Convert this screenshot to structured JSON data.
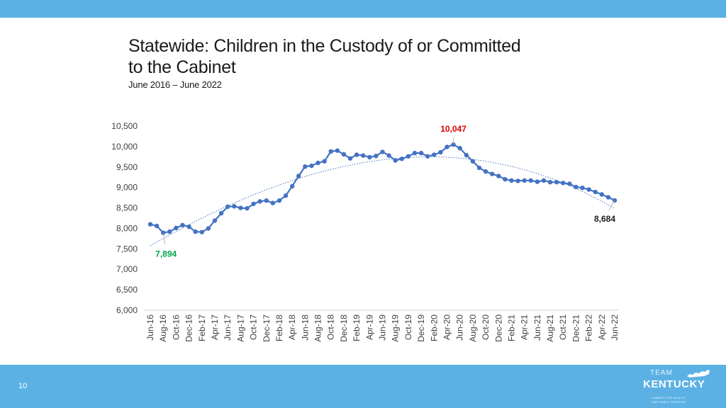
{
  "slide": {
    "title": "Statewide: Children in the Custody of or Committed to the Cabinet",
    "subtitle": "June 2016 – June 2022",
    "page_number": "10"
  },
  "logo": {
    "line1": "TEAM",
    "line2": "KENTUCKY",
    "line3": "CABINET FOR HEALTH",
    "line4": "AND FAMILY SERVICES"
  },
  "colors": {
    "band": "#5bb1e3",
    "series": "#4472c4",
    "max_label": "#e00000",
    "min_label": "#00a651"
  },
  "chart_data": {
    "type": "line",
    "title": "",
    "xlabel": "",
    "ylabel": "",
    "ylim": [
      6000,
      10500
    ],
    "yticks": [
      6000,
      6500,
      7000,
      7500,
      8000,
      8500,
      9000,
      9500,
      10000,
      10500
    ],
    "ytick_labels": [
      "6,000",
      "6,500",
      "7,000",
      "7,500",
      "8,000",
      "8,500",
      "9,000",
      "9,500",
      "10,000",
      "10,500"
    ],
    "grid": false,
    "trendline": "polynomial",
    "x": [
      "Jun-16",
      "Jul-16",
      "Aug-16",
      "Sep-16",
      "Oct-16",
      "Nov-16",
      "Dec-16",
      "Jan-17",
      "Feb-17",
      "Mar-17",
      "Apr-17",
      "May-17",
      "Jun-17",
      "Jul-17",
      "Aug-17",
      "Sep-17",
      "Oct-17",
      "Nov-17",
      "Dec-17",
      "Jan-18",
      "Feb-18",
      "Mar-18",
      "Apr-18",
      "May-18",
      "Jun-18",
      "Jul-18",
      "Aug-18",
      "Sep-18",
      "Oct-18",
      "Nov-18",
      "Dec-18",
      "Jan-19",
      "Feb-19",
      "Mar-19",
      "Apr-19",
      "May-19",
      "Jun-19",
      "Jul-19",
      "Aug-19",
      "Sep-19",
      "Oct-19",
      "Nov-19",
      "Dec-19",
      "Jan-20",
      "Feb-20",
      "Mar-20",
      "Apr-20",
      "May-20",
      "Jun-20",
      "Jul-20",
      "Aug-20",
      "Sep-20",
      "Oct-20",
      "Nov-20",
      "Dec-20",
      "Jan-21",
      "Feb-21",
      "Mar-21",
      "Apr-21",
      "May-21",
      "Jun-21",
      "Jul-21",
      "Aug-21",
      "Sep-21",
      "Oct-21",
      "Nov-21",
      "Dec-21",
      "Jan-22",
      "Feb-22",
      "Mar-22",
      "Apr-22",
      "May-22",
      "Jun-22"
    ],
    "xtick_labels": [
      "Jun-16",
      "Aug-16",
      "Oct-16",
      "Dec-16",
      "Feb-17",
      "Apr-17",
      "Jun-17",
      "Aug-17",
      "Oct-17",
      "Dec-17",
      "Feb-18",
      "Apr-18",
      "Jun-18",
      "Aug-18",
      "Oct-18",
      "Dec-18",
      "Feb-19",
      "Apr-19",
      "Jun-19",
      "Aug-19",
      "Oct-19",
      "Dec-19",
      "Feb-20",
      "Apr-20",
      "Jun-20",
      "Aug-20",
      "Oct-20",
      "Dec-20",
      "Feb-21",
      "Apr-21",
      "Jun-21",
      "Aug-21",
      "Oct-21",
      "Dec-21",
      "Feb-22",
      "Apr-22",
      "Jun-22"
    ],
    "values": [
      8100,
      8060,
      7894,
      7920,
      8010,
      8080,
      8040,
      7920,
      7910,
      8000,
      8190,
      8370,
      8530,
      8540,
      8500,
      8490,
      8600,
      8660,
      8680,
      8620,
      8680,
      8800,
      9030,
      9280,
      9510,
      9530,
      9600,
      9640,
      9880,
      9900,
      9810,
      9710,
      9800,
      9780,
      9740,
      9770,
      9870,
      9780,
      9660,
      9700,
      9760,
      9840,
      9840,
      9760,
      9800,
      9860,
      9990,
      10047,
      9960,
      9790,
      9640,
      9480,
      9390,
      9330,
      9280,
      9200,
      9170,
      9160,
      9170,
      9170,
      9140,
      9170,
      9130,
      9130,
      9110,
      9090,
      9010,
      8990,
      8950,
      8890,
      8830,
      8760,
      8684
    ],
    "annotations": [
      {
        "text": "10,047",
        "x": "May-20",
        "y": 10047,
        "kind": "max"
      },
      {
        "text": "7,894",
        "x": "Aug-16",
        "y": 7894,
        "kind": "min"
      },
      {
        "text": "8,684",
        "x": "Jun-22",
        "y": 8684,
        "kind": "last"
      }
    ]
  }
}
